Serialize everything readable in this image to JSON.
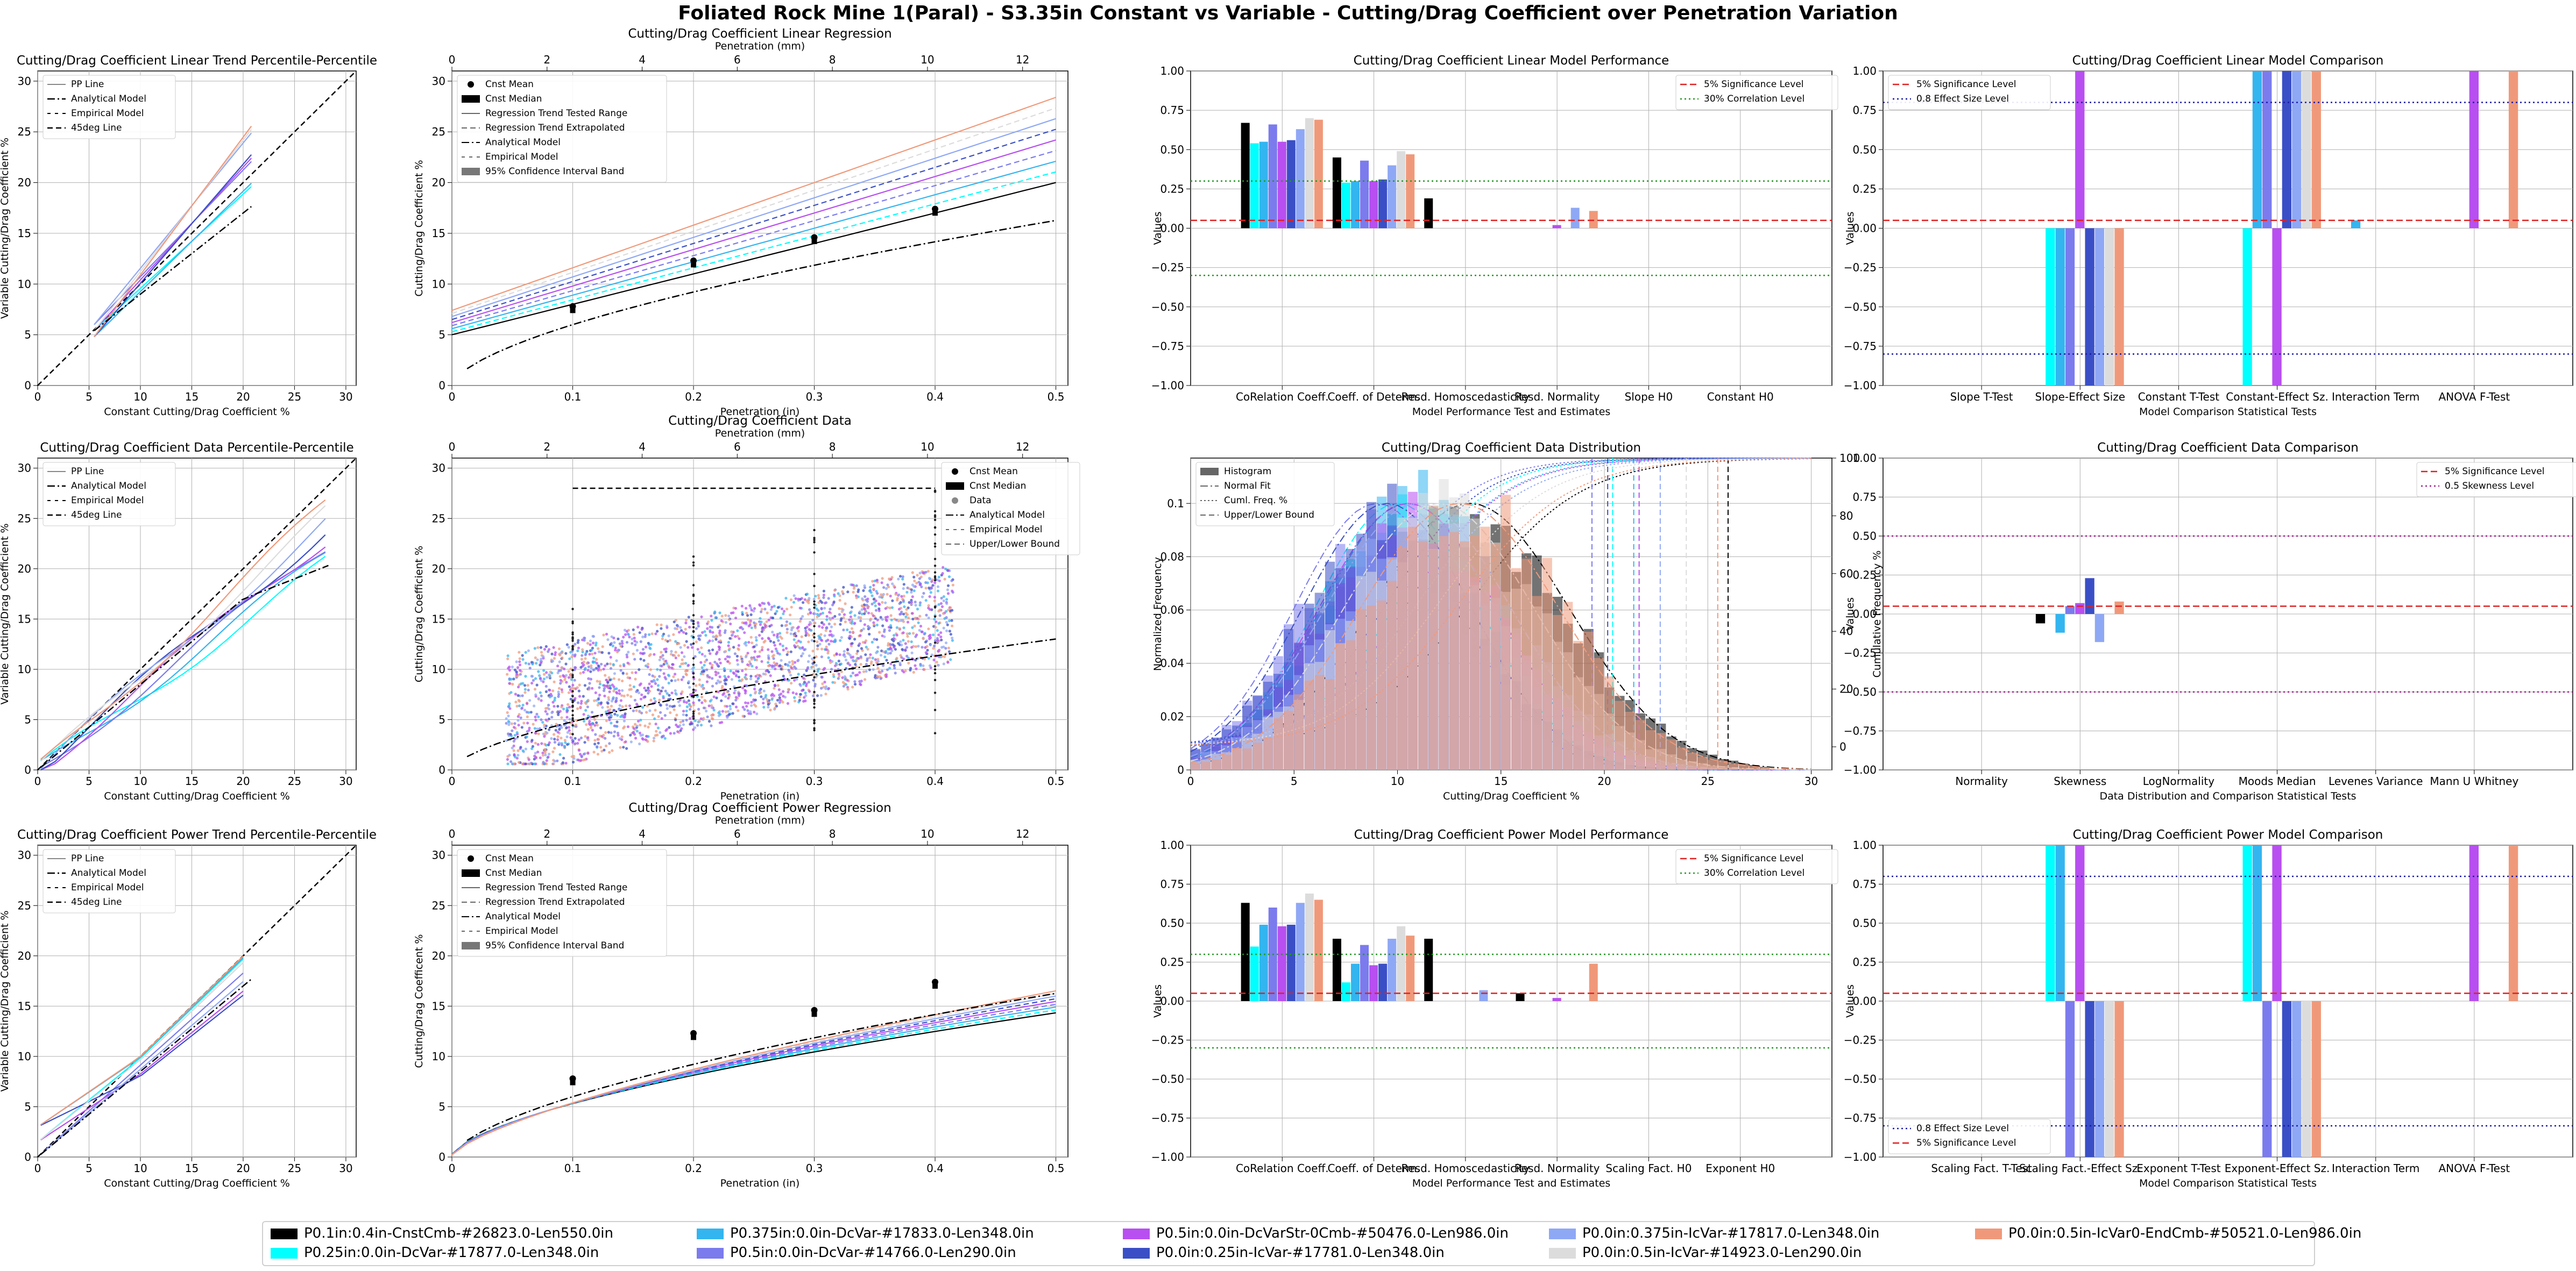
{
  "title": "Foliated Rock Mine 1(Paral) - S3.35in Constant vs Variable - Cutting/Drag Coefficient over Penetration Variation",
  "series": [
    {
      "name": "P0.1in:0.4in-CnstCmb-#26823.0-Len550.0in",
      "color": "#000000"
    },
    {
      "name": "P0.25in:0.0in-DcVar-#17877.0-Len348.0in",
      "color": "#00ffff"
    },
    {
      "name": "P0.375in:0.0in-DcVar-#17833.0-Len348.0in",
      "color": "#33b5f0"
    },
    {
      "name": "P0.5in:0.0in-DcVar-#14766.0-Len290.0in",
      "color": "#7b7bee"
    },
    {
      "name": "P0.5in:0.0in-DcVarStr-0Cmb-#50476.0-Len986.0in",
      "color": "#b84ff0"
    },
    {
      "name": "P0.0in:0.25in-IcVar-#17781.0-Len348.0in",
      "color": "#3a4fc6"
    },
    {
      "name": "P0.0in:0.375in-IcVar-#17817.0-Len348.0in",
      "color": "#8fa8f5"
    },
    {
      "name": "P0.0in:0.5in-IcVar-#14923.0-Len290.0in",
      "color": "#dcdcdc"
    },
    {
      "name": "P0.0in:0.5in-IcVar0-EndCmb-#50521.0-Len986.0in",
      "color": "#f0997a"
    }
  ],
  "chart_data": [
    {
      "id": "pp-linear",
      "type": "line",
      "title": "Cutting/Drag Coefficient Linear Trend Percentile-Percentile",
      "xlabel": "Constant Cutting/Drag Coefficient %",
      "ylabel": "Variable Cutting/Drag Coefficient %",
      "xlim": [
        0,
        31
      ],
      "ylim": [
        0,
        31
      ],
      "xticks": [
        0,
        5,
        10,
        15,
        20,
        25,
        30
      ],
      "yticks": [
        0,
        5,
        10,
        15,
        20,
        25,
        30
      ],
      "legend": [
        "PP Line",
        "Analytical Model",
        "Empirical Model",
        "45deg Line"
      ]
    },
    {
      "id": "reg-linear",
      "type": "line",
      "title": "Cutting/Drag Coefficient Linear Regression",
      "xlabel": "Penetration (in)",
      "x2label": "Penetration (mm)",
      "ylabel": "Cutting/Drag Coefficient %",
      "xlim": [
        0,
        0.51
      ],
      "ylim": [
        0,
        31
      ],
      "xticks": [
        0.0,
        0.1,
        0.2,
        0.3,
        0.4,
        0.5
      ],
      "x2ticks": [
        0,
        2,
        4,
        6,
        8,
        10,
        12
      ],
      "yticks": [
        0,
        5,
        10,
        15,
        20,
        25,
        30
      ],
      "legend": [
        "Cnst Mean",
        "Cnst Median",
        "Regression Trend Tested Range",
        "Regression Trend Extrapolated",
        "Analytical Model",
        "Empirical Model",
        "95% Confidence Interval Band"
      ],
      "cnst_mean": [
        [
          0.1,
          7.8
        ],
        [
          0.2,
          12.3
        ],
        [
          0.3,
          14.6
        ],
        [
          0.4,
          17.4
        ]
      ]
    },
    {
      "id": "perf-linear",
      "type": "bar",
      "title": "Cutting/Drag Coefficient Linear Model Performance",
      "xlabel": "Model Performance Test and Estimates",
      "ylabel": "Values",
      "ylim": [
        -1,
        1
      ],
      "categories": [
        "CoRelation Coeff.",
        "Coeff. of Determ.",
        "Resd. Homoscedasticity",
        "Resd. Normality",
        "Slope H0",
        "Constant H0"
      ],
      "yticks": [
        "−1.00",
        "−0.75",
        "−0.50",
        "−0.25",
        "0.00",
        "0.25",
        "0.50",
        "0.75",
        "1.00"
      ],
      "legend": [
        "5% Significance Level",
        "30% Correlation Level"
      ],
      "values": [
        [
          0.67,
          0.45,
          0.19,
          0,
          0,
          0
        ],
        [
          0.54,
          0.29,
          0,
          0,
          0,
          0
        ],
        [
          0.55,
          0.3,
          0,
          0,
          0,
          0
        ],
        [
          0.66,
          0.43,
          0,
          0,
          0,
          0
        ],
        [
          0.55,
          0.3,
          0,
          0.02,
          0,
          0
        ],
        [
          0.56,
          0.31,
          0,
          0,
          0,
          0
        ],
        [
          0.63,
          0.4,
          0,
          0.13,
          0,
          0
        ],
        [
          0.7,
          0.49,
          0,
          0,
          0,
          0
        ],
        [
          0.69,
          0.47,
          0,
          0.11,
          0,
          0
        ]
      ]
    },
    {
      "id": "cmp-linear",
      "type": "bar",
      "title": "Cutting/Drag Coefficient Linear Model Comparison",
      "xlabel": "Model Comparison Statistical Tests",
      "ylabel": "Values",
      "ylim": [
        -1,
        1
      ],
      "categories": [
        "Slope T-Test",
        "Slope-Effect Size",
        "Constant T-Test",
        "Constant-Effect Sz.",
        "Interaction Term",
        "ANOVA F-Test"
      ],
      "yticks": [
        "−1.00",
        "−0.75",
        "−0.50",
        "−0.25",
        "0.00",
        "0.25",
        "0.50",
        "0.75",
        "1.00"
      ],
      "legend": [
        "5% Significance Level",
        "0.8 Effect Size Level"
      ],
      "values": [
        [
          0,
          0,
          0,
          0,
          0,
          0
        ],
        [
          0,
          -1,
          0,
          -1,
          0,
          0
        ],
        [
          0,
          -1,
          0,
          1,
          0.05,
          0
        ],
        [
          0,
          -1,
          0,
          1,
          0,
          0
        ],
        [
          0,
          1,
          0,
          -1,
          0,
          1
        ],
        [
          0,
          -1,
          0,
          1,
          0,
          0
        ],
        [
          0,
          -1,
          0,
          1,
          0,
          0
        ],
        [
          0,
          -1,
          0,
          1,
          0,
          0
        ],
        [
          0,
          -1,
          0,
          1,
          0,
          1
        ]
      ]
    },
    {
      "id": "pp-data",
      "type": "line",
      "title": "Cutting/Drag Coefficient Data Percentile-Percentile",
      "xlabel": "Constant Cutting/Drag Coefficient %",
      "ylabel": "Variable Cutting/Drag Coefficient %",
      "xlim": [
        0,
        31
      ],
      "ylim": [
        0,
        31
      ],
      "xticks": [
        0,
        5,
        10,
        15,
        20,
        25,
        30
      ],
      "yticks": [
        0,
        5,
        10,
        15,
        20,
        25,
        30
      ],
      "legend": [
        "PP Line",
        "Analytical Model",
        "Empirical Model",
        "45deg Line"
      ]
    },
    {
      "id": "data-scatter",
      "type": "scatter",
      "title": "Cutting/Drag Coefficient Data",
      "xlabel": "Penetration (in)",
      "x2label": "Penetration (mm)",
      "ylabel": "Cutting/Drag Coefficient %",
      "xlim": [
        0,
        0.51
      ],
      "ylim": [
        0,
        31
      ],
      "xticks": [
        0.0,
        0.1,
        0.2,
        0.3,
        0.4,
        0.5
      ],
      "x2ticks": [
        0,
        2,
        4,
        6,
        8,
        10,
        12
      ],
      "yticks": [
        0,
        5,
        10,
        15,
        20,
        25,
        30
      ],
      "legend": [
        "Cnst Mean",
        "Cnst Median",
        "Data",
        "Analytical Model",
        "Empirical Model",
        "Upper/Lower Bound"
      ]
    },
    {
      "id": "distribution",
      "type": "bar",
      "title": "Cutting/Drag Coefficient Data Distribution",
      "xlabel": "Cutting/Drag Coefficient %",
      "ylabel": "Normalized Frequency",
      "y2label": "Cumulative Frequency %",
      "xlim": [
        0,
        31
      ],
      "ylim": [
        0,
        0.117
      ],
      "xticks": [
        0,
        5,
        10,
        15,
        20,
        25,
        30
      ],
      "yticks": [
        0.0,
        0.02,
        0.04,
        0.06,
        0.08,
        0.1
      ],
      "y2ticks": [
        0,
        20,
        40,
        60,
        80,
        100
      ],
      "legend": [
        "Histogram",
        "Normal Fit",
        "Cuml. Freq. %",
        "Upper/Lower Bound"
      ]
    },
    {
      "id": "cmp-data",
      "type": "bar",
      "title": "Cutting/Drag Coefficient Data Comparison",
      "xlabel": "Data Distribution and Comparison Statistical Tests",
      "ylabel": "Values",
      "ylim": [
        -1,
        1
      ],
      "categories": [
        "Normality",
        "Skewness",
        "LogNormality",
        "Moods Median",
        "Levenes Variance",
        "Mann U Whitney"
      ],
      "yticks": [
        "−1.00",
        "−0.75",
        "−0.50",
        "−0.25",
        "0.00",
        "0.25",
        "0.50",
        "0.75",
        "1.00"
      ],
      "legend": [
        "5% Significance Level",
        "0.5 Skewness Level"
      ],
      "values": [
        [
          0,
          -0.06,
          0,
          0,
          0,
          0
        ],
        [
          0,
          0,
          0,
          0,
          0,
          0
        ],
        [
          0,
          -0.12,
          0,
          0,
          0,
          0
        ],
        [
          0,
          0.05,
          0,
          0,
          0,
          0
        ],
        [
          0,
          0.07,
          0,
          0,
          0,
          0
        ],
        [
          0,
          0.23,
          0,
          0,
          0,
          0
        ],
        [
          0,
          -0.18,
          0,
          0,
          0,
          0
        ],
        [
          0,
          0,
          0,
          0,
          0,
          0
        ],
        [
          0,
          0.08,
          0,
          0,
          0,
          0
        ]
      ]
    },
    {
      "id": "pp-power",
      "type": "line",
      "title": "Cutting/Drag Coefficient Power Trend Percentile-Percentile",
      "xlabel": "Constant Cutting/Drag Coefficient %",
      "ylabel": "Variable Cutting/Drag Coefficient %",
      "xlim": [
        0,
        31
      ],
      "ylim": [
        0,
        31
      ],
      "xticks": [
        0,
        5,
        10,
        15,
        20,
        25,
        30
      ],
      "yticks": [
        0,
        5,
        10,
        15,
        20,
        25,
        30
      ],
      "legend": [
        "PP Line",
        "Analytical Model",
        "Empirical Model",
        "45deg Line"
      ]
    },
    {
      "id": "reg-power",
      "type": "line",
      "title": "Cutting/Drag Coefficient Power Regression",
      "xlabel": "Penetration (in)",
      "x2label": "Penetration (mm)",
      "ylabel": "Cutting/Drag Coefficent %",
      "xlim": [
        0,
        0.51
      ],
      "ylim": [
        0,
        31
      ],
      "xticks": [
        0.0,
        0.1,
        0.2,
        0.3,
        0.4,
        0.5
      ],
      "x2ticks": [
        0,
        2,
        4,
        6,
        8,
        10,
        12
      ],
      "yticks": [
        0,
        5,
        10,
        15,
        20,
        25,
        30
      ],
      "legend": [
        "Cnst Mean",
        "Cnst Median",
        "Regression Trend Tested Range",
        "Regression Trend Extrapolated",
        "Analytical Model",
        "Empirical Model",
        "95% Confidence Interval Band"
      ],
      "cnst_mean": [
        [
          0.1,
          7.8
        ],
        [
          0.2,
          12.3
        ],
        [
          0.3,
          14.6
        ],
        [
          0.4,
          17.4
        ]
      ]
    },
    {
      "id": "perf-power",
      "type": "bar",
      "title": "Cutting/Drag Coefficient Power Model Performance",
      "xlabel": "Model Performance Test and Estimates",
      "ylabel": "Values",
      "ylim": [
        -1,
        1
      ],
      "categories": [
        "CoRelation Coeff.",
        "Coeff. of Determ.",
        "Resd. Homoscedasticity",
        "Resd. Normality",
        "Scaling Fact. H0",
        "Exponent H0"
      ],
      "yticks": [
        "−1.00",
        "−0.75",
        "−0.50",
        "−0.25",
        "0.00",
        "0.25",
        "0.50",
        "0.75",
        "1.00"
      ],
      "legend": [
        "5% Significance Level",
        "30% Correlation Level"
      ],
      "values": [
        [
          0.63,
          0.4,
          0.4,
          0.05,
          0,
          0
        ],
        [
          0.35,
          0.12,
          0,
          0,
          0,
          0
        ],
        [
          0.49,
          0.24,
          0,
          0,
          0,
          0
        ],
        [
          0.6,
          0.36,
          0,
          0,
          0,
          0
        ],
        [
          0.48,
          0.23,
          0,
          0.02,
          0,
          0
        ],
        [
          0.49,
          0.24,
          0,
          0,
          0,
          0
        ],
        [
          0.63,
          0.4,
          0.07,
          0,
          0,
          0
        ],
        [
          0.69,
          0.48,
          0,
          0,
          0,
          0
        ],
        [
          0.65,
          0.42,
          0,
          0.24,
          0,
          0
        ]
      ]
    },
    {
      "id": "cmp-power",
      "type": "bar",
      "title": "Cutting/Drag Coefficient Power Model Comparison",
      "xlabel": "Model Comparison Statistical Tests",
      "ylabel": "Values",
      "ylim": [
        -1,
        1
      ],
      "categories": [
        "Scaling Fact. T-Test",
        "Scaling Fact.-Effect Sz.",
        "Exponent T-Test",
        "Exponent-Effect Sz.",
        "Interaction Term",
        "ANOVA F-Test"
      ],
      "yticks": [
        "−1.00",
        "−0.75",
        "−0.50",
        "−0.25",
        "0.00",
        "0.25",
        "0.50",
        "0.75",
        "1.00"
      ],
      "legend": [
        "0.8 Effect Size Level",
        "5% Significance Level"
      ],
      "values": [
        [
          0,
          0,
          0,
          0,
          0,
          0
        ],
        [
          0,
          1,
          0,
          1,
          0,
          0
        ],
        [
          0,
          1,
          0,
          1,
          0,
          0
        ],
        [
          0,
          -1,
          0,
          -1,
          0,
          0
        ],
        [
          0,
          1,
          0,
          1,
          0,
          1
        ],
        [
          0,
          -1,
          0,
          -1,
          0,
          0
        ],
        [
          0,
          -1,
          0,
          -1,
          0,
          0
        ],
        [
          0,
          -1,
          0,
          -1,
          0,
          0
        ],
        [
          0,
          -1,
          0,
          -1,
          0,
          1
        ]
      ]
    }
  ]
}
